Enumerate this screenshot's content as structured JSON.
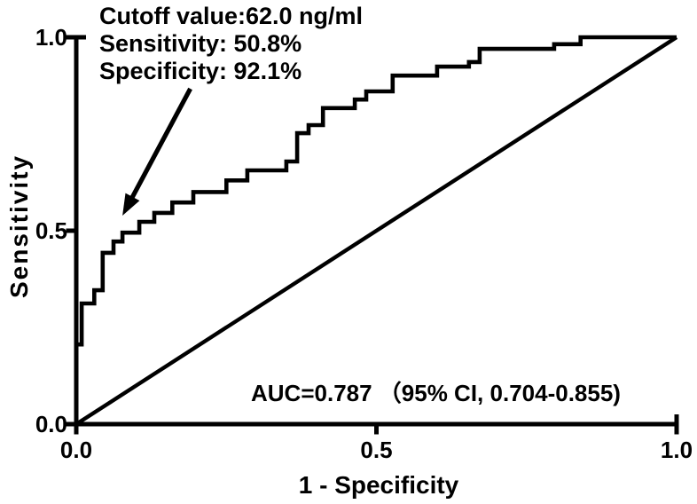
{
  "chart_data": {
    "type": "line",
    "subtype": "roc-curve",
    "title": "",
    "xlabel": "1 - Specificity",
    "ylabel": "Sensitivity",
    "xlim": [
      0.0,
      1.0
    ],
    "ylim": [
      0.0,
      1.0
    ],
    "grid": false,
    "legend": "none",
    "line_color": "#000000",
    "background_color": "#ffffff",
    "xticks": {
      "values": [
        0.0,
        0.5,
        1.0
      ],
      "labels": [
        "0.0",
        "0.5",
        "1.0"
      ]
    },
    "yticks": {
      "values": [
        0.0,
        0.5,
        1.0
      ],
      "labels": [
        "0.0",
        "0.5",
        "1.0"
      ]
    },
    "series": [
      {
        "name": "ROC curve",
        "draw": "steps",
        "points": [
          [
            0.0,
            0.0
          ],
          [
            0.0,
            0.206
          ],
          [
            0.009,
            0.206
          ],
          [
            0.009,
            0.312
          ],
          [
            0.03,
            0.312
          ],
          [
            0.03,
            0.346
          ],
          [
            0.044,
            0.346
          ],
          [
            0.044,
            0.443
          ],
          [
            0.062,
            0.443
          ],
          [
            0.062,
            0.472
          ],
          [
            0.077,
            0.472
          ],
          [
            0.077,
            0.495
          ],
          [
            0.105,
            0.495
          ],
          [
            0.105,
            0.523
          ],
          [
            0.13,
            0.523
          ],
          [
            0.13,
            0.546
          ],
          [
            0.16,
            0.546
          ],
          [
            0.16,
            0.573
          ],
          [
            0.195,
            0.573
          ],
          [
            0.195,
            0.6
          ],
          [
            0.25,
            0.6
          ],
          [
            0.25,
            0.63
          ],
          [
            0.285,
            0.63
          ],
          [
            0.285,
            0.656
          ],
          [
            0.35,
            0.656
          ],
          [
            0.35,
            0.679
          ],
          [
            0.368,
            0.679
          ],
          [
            0.368,
            0.752
          ],
          [
            0.387,
            0.752
          ],
          [
            0.387,
            0.773
          ],
          [
            0.411,
            0.773
          ],
          [
            0.411,
            0.817
          ],
          [
            0.464,
            0.817
          ],
          [
            0.464,
            0.839
          ],
          [
            0.483,
            0.839
          ],
          [
            0.483,
            0.86
          ],
          [
            0.527,
            0.86
          ],
          [
            0.527,
            0.901
          ],
          [
            0.601,
            0.901
          ],
          [
            0.601,
            0.924
          ],
          [
            0.654,
            0.924
          ],
          [
            0.654,
            0.936
          ],
          [
            0.672,
            0.936
          ],
          [
            0.672,
            0.97
          ],
          [
            0.796,
            0.97
          ],
          [
            0.796,
            0.982
          ],
          [
            0.84,
            0.982
          ],
          [
            0.84,
            1.0
          ],
          [
            1.0,
            1.0
          ]
        ]
      },
      {
        "name": "Reference diagonal",
        "draw": "straight",
        "points": [
          [
            0.0,
            0.0
          ],
          [
            1.0,
            1.0
          ]
        ]
      }
    ],
    "annotations": {
      "cutoff": {
        "lines": [
          "Cutoff value:62.0 ng/ml",
          "Sensitivity: 50.8%",
          "Specificity: 92.1%"
        ],
        "arrow_from_xy": [
          0.19,
          0.867
        ],
        "arrow_to_xy": [
          0.077,
          0.539
        ]
      },
      "auc_text": "AUC=0.787 （95% CI, 0.704-0.855)"
    },
    "stats": {
      "auc": 0.787,
      "ci_95_lower": 0.704,
      "ci_95_upper": 0.855,
      "cutoff_value": "62.0 ng/ml",
      "sensitivity_pct": 50.8,
      "specificity_pct": 92.1
    }
  }
}
